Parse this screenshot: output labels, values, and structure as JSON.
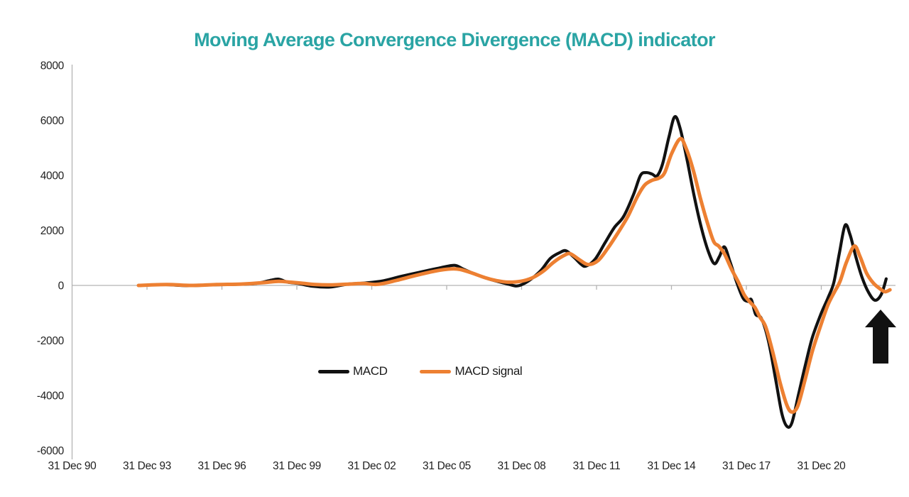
{
  "title": {
    "text": "Moving Average Convergence Divergence (MACD) indicator",
    "color": "#2aa4a4"
  },
  "annotation": {
    "type": "up-arrow",
    "color": "#111111"
  },
  "colors": {
    "axis_gray": "#b3b3b3",
    "label_text": "#1f1f1f",
    "macd_black": "#111111",
    "macd_signal_orange": "#ed8032"
  },
  "chart_data": {
    "type": "line",
    "title": "Moving Average Convergence Divergence (MACD) indicator",
    "x_tick_labels": [
      "31 Dec 90",
      "31 Dec 93",
      "31 Dec 96",
      "31 Dec 99",
      "31 Dec 02",
      "31 Dec 05",
      "31 Dec 08",
      "31 Dec 11",
      "31 Dec 14",
      "31 Dec 17",
      "31 Dec 20"
    ],
    "x_tick_years": [
      1991,
      1994,
      1997,
      2000,
      2003,
      2006,
      2009,
      2012,
      2015,
      2018,
      2021
    ],
    "y_tick_labels": [
      "8000",
      "6000",
      "4000",
      "2000",
      "0",
      "-2000",
      "-4000",
      "-6000"
    ],
    "y_ticks": [
      8000,
      6000,
      4000,
      2000,
      0,
      -2000,
      -4000,
      -6000
    ],
    "ylim": [
      -6000,
      8000
    ],
    "xlim_years": [
      1991.0,
      2024.0
    ],
    "grid": false,
    "zero_line": true,
    "legend_position": "bottom-center",
    "series": [
      {
        "name": "MACD",
        "color": "#111111",
        "width": 4.2,
        "points": [
          [
            1993.66,
            0
          ],
          [
            1994.65,
            30
          ],
          [
            1995.65,
            -10
          ],
          [
            1996.64,
            20
          ],
          [
            1997.64,
            40
          ],
          [
            1998.35,
            70
          ],
          [
            1998.92,
            180
          ],
          [
            1999.26,
            230
          ],
          [
            1999.63,
            120
          ],
          [
            2000.06,
            70
          ],
          [
            2000.63,
            -30
          ],
          [
            2001.34,
            -60
          ],
          [
            2002.05,
            50
          ],
          [
            2002.76,
            90
          ],
          [
            2003.47,
            170
          ],
          [
            2004.18,
            330
          ],
          [
            2005.03,
            500
          ],
          [
            2005.74,
            640
          ],
          [
            2006.31,
            730
          ],
          [
            2006.65,
            600
          ],
          [
            2007.11,
            420
          ],
          [
            2007.59,
            260
          ],
          [
            2008.1,
            130
          ],
          [
            2008.53,
            30
          ],
          [
            2008.79,
            -20
          ],
          [
            2009.04,
            40
          ],
          [
            2009.38,
            230
          ],
          [
            2009.78,
            550
          ],
          [
            2010.15,
            980
          ],
          [
            2010.52,
            1190
          ],
          [
            2010.78,
            1260
          ],
          [
            2011.09,
            1030
          ],
          [
            2011.37,
            780
          ],
          [
            2011.57,
            700
          ],
          [
            2011.94,
            950
          ],
          [
            2012.34,
            1550
          ],
          [
            2012.71,
            2100
          ],
          [
            2013.08,
            2500
          ],
          [
            2013.48,
            3300
          ],
          [
            2013.76,
            4000
          ],
          [
            2013.99,
            4100
          ],
          [
            2014.22,
            4050
          ],
          [
            2014.42,
            3980
          ],
          [
            2014.64,
            4400
          ],
          [
            2014.9,
            5400
          ],
          [
            2015.13,
            6130
          ],
          [
            2015.35,
            5700
          ],
          [
            2015.64,
            4500
          ],
          [
            2015.92,
            3200
          ],
          [
            2016.21,
            2050
          ],
          [
            2016.49,
            1200
          ],
          [
            2016.72,
            790
          ],
          [
            2016.92,
            1050
          ],
          [
            2017.12,
            1400
          ],
          [
            2017.35,
            850
          ],
          [
            2017.6,
            150
          ],
          [
            2017.86,
            -450
          ],
          [
            2018.06,
            -580
          ],
          [
            2018.2,
            -520
          ],
          [
            2018.37,
            -1050
          ],
          [
            2018.6,
            -1200
          ],
          [
            2018.88,
            -2000
          ],
          [
            2019.17,
            -3400
          ],
          [
            2019.42,
            -4650
          ],
          [
            2019.62,
            -5120
          ],
          [
            2019.82,
            -5000
          ],
          [
            2020.08,
            -4000
          ],
          [
            2020.36,
            -2900
          ],
          [
            2020.64,
            -1900
          ],
          [
            2020.98,
            -1050
          ],
          [
            2021.27,
            -450
          ],
          [
            2021.5,
            100
          ],
          [
            2021.72,
            1150
          ],
          [
            2021.95,
            2180
          ],
          [
            2022.15,
            1850
          ],
          [
            2022.38,
            1050
          ],
          [
            2022.63,
            300
          ],
          [
            2022.89,
            -250
          ],
          [
            2023.15,
            -540
          ],
          [
            2023.4,
            -330
          ],
          [
            2023.6,
            240
          ]
        ]
      },
      {
        "name": "MACD signal",
        "color": "#ed8032",
        "width": 5,
        "points": [
          [
            1993.66,
            0
          ],
          [
            1994.8,
            30
          ],
          [
            1995.79,
            0
          ],
          [
            1996.79,
            30
          ],
          [
            1997.78,
            50
          ],
          [
            1998.64,
            100
          ],
          [
            1999.26,
            150
          ],
          [
            1999.72,
            120
          ],
          [
            2000.2,
            80
          ],
          [
            2000.77,
            30
          ],
          [
            2001.42,
            20
          ],
          [
            2002.11,
            50
          ],
          [
            2002.67,
            70
          ],
          [
            2003.24,
            40
          ],
          [
            2003.98,
            180
          ],
          [
            2004.75,
            360
          ],
          [
            2005.52,
            520
          ],
          [
            2006.17,
            600
          ],
          [
            2006.54,
            580
          ],
          [
            2007.02,
            450
          ],
          [
            2007.54,
            280
          ],
          [
            2008.02,
            170
          ],
          [
            2008.45,
            120
          ],
          [
            2008.96,
            150
          ],
          [
            2009.44,
            280
          ],
          [
            2009.87,
            520
          ],
          [
            2010.29,
            850
          ],
          [
            2010.72,
            1100
          ],
          [
            2010.95,
            1150
          ],
          [
            2011.29,
            950
          ],
          [
            2011.66,
            760
          ],
          [
            2012.06,
            900
          ],
          [
            2012.45,
            1350
          ],
          [
            2012.85,
            1900
          ],
          [
            2013.25,
            2500
          ],
          [
            2013.65,
            3250
          ],
          [
            2013.93,
            3650
          ],
          [
            2014.22,
            3820
          ],
          [
            2014.5,
            3900
          ],
          [
            2014.73,
            4100
          ],
          [
            2015.01,
            4800
          ],
          [
            2015.35,
            5330
          ],
          [
            2015.58,
            5000
          ],
          [
            2015.87,
            4200
          ],
          [
            2016.15,
            3200
          ],
          [
            2016.43,
            2300
          ],
          [
            2016.69,
            1600
          ],
          [
            2016.89,
            1430
          ],
          [
            2017.12,
            1150
          ],
          [
            2017.4,
            600
          ],
          [
            2017.69,
            100
          ],
          [
            2017.92,
            -350
          ],
          [
            2018.14,
            -600
          ],
          [
            2018.34,
            -800
          ],
          [
            2018.54,
            -1150
          ],
          [
            2018.77,
            -1500
          ],
          [
            2019.05,
            -2400
          ],
          [
            2019.34,
            -3500
          ],
          [
            2019.62,
            -4350
          ],
          [
            2019.82,
            -4600
          ],
          [
            2020.05,
            -4400
          ],
          [
            2020.33,
            -3500
          ],
          [
            2020.64,
            -2400
          ],
          [
            2020.96,
            -1500
          ],
          [
            2021.27,
            -700
          ],
          [
            2021.55,
            -200
          ],
          [
            2021.75,
            150
          ],
          [
            2022.01,
            850
          ],
          [
            2022.32,
            1430
          ],
          [
            2022.55,
            1050
          ],
          [
            2022.81,
            450
          ],
          [
            2023.09,
            80
          ],
          [
            2023.35,
            -120
          ],
          [
            2023.55,
            -230
          ],
          [
            2023.75,
            -160
          ]
        ]
      }
    ]
  }
}
